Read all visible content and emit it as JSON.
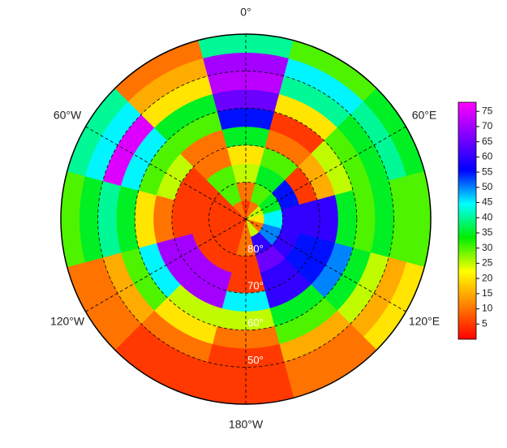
{
  "chart_data": {
    "type": "polar-heatmap",
    "longitudes": [
      0,
      30,
      60,
      90,
      120,
      150,
      180,
      210,
      240,
      270,
      300,
      330
    ],
    "latitudes": [
      -87.5,
      -82.5,
      -77.5,
      -72.5,
      -67.5,
      -62.5,
      -57.5,
      -52.5,
      -47.5,
      -42.5
    ],
    "values": [
      [
        5,
        10,
        25,
        20,
        35,
        55,
        65,
        72,
        70,
        40
      ],
      [
        10,
        30,
        35,
        30,
        10,
        5,
        20,
        40,
        45,
        30
      ],
      [
        25,
        35,
        55,
        5,
        15,
        25,
        30,
        35,
        40,
        35
      ],
      [
        20,
        45,
        60,
        60,
        60,
        35,
        30,
        35,
        30,
        30
      ],
      [
        10,
        50,
        60,
        55,
        55,
        50,
        35,
        25,
        15,
        20
      ],
      [
        25,
        60,
        65,
        60,
        60,
        35,
        30,
        15,
        10,
        10
      ],
      [
        10,
        10,
        5,
        5,
        45,
        25,
        10,
        5,
        5,
        5
      ],
      [
        5,
        5,
        5,
        70,
        70,
        25,
        20,
        10,
        5,
        5
      ],
      [
        5,
        5,
        5,
        70,
        70,
        45,
        30,
        15,
        10,
        10
      ],
      [
        5,
        5,
        5,
        5,
        10,
        20,
        35,
        40,
        35,
        30
      ],
      [
        5,
        5,
        5,
        5,
        25,
        30,
        45,
        75,
        45,
        40
      ],
      [
        10,
        30,
        30,
        10,
        10,
        30,
        35,
        20,
        15,
        10
      ]
    ],
    "rlim": [
      -90,
      -40
    ],
    "rticks": [
      {
        "value": -80,
        "label": "80°"
      },
      {
        "value": -70,
        "label": "70°"
      },
      {
        "value": -60,
        "label": "60°"
      },
      {
        "value": -50,
        "label": "50°"
      }
    ],
    "thetaticks": [
      {
        "value": 0,
        "label": "0°"
      },
      {
        "value": 60,
        "label": "60°E"
      },
      {
        "value": 120,
        "label": "120°E"
      },
      {
        "value": 180,
        "label": "180°W"
      },
      {
        "value": 240,
        "label": "120°W"
      },
      {
        "value": 300,
        "label": "60°W"
      }
    ],
    "grid": true,
    "colormap": [
      "#ff0000",
      "#ff8000",
      "#ffff00",
      "#00ee00",
      "#00ffff",
      "#0000ff",
      "#8000ff",
      "#ff00ff"
    ],
    "colorbar": {
      "lim": [
        0,
        78
      ],
      "ticks": [
        5,
        10,
        15,
        20,
        25,
        30,
        35,
        40,
        45,
        50,
        55,
        60,
        65,
        70,
        75
      ]
    }
  }
}
